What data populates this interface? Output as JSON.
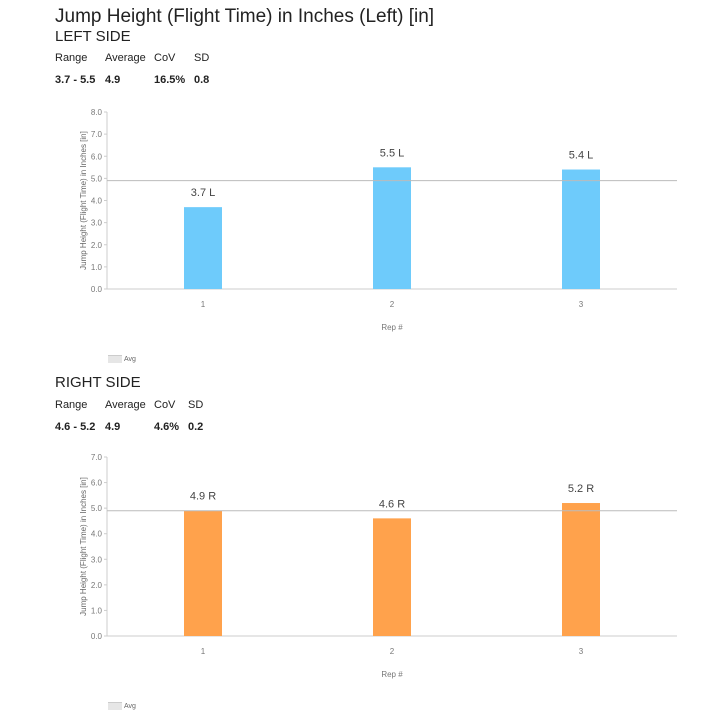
{
  "title": "Jump Height (Flight Time) in Inches (Left) [in]",
  "stat_labels": {
    "range": "Range",
    "average": "Average",
    "cov": "CoV",
    "sd": "SD"
  },
  "left": {
    "heading": "LEFT SIDE",
    "range": "3.7 - 5.5",
    "average": "4.9",
    "cov": "16.5%",
    "sd": "0.8"
  },
  "right": {
    "heading": "RIGHT SIDE",
    "range": "4.6 - 5.2",
    "average": "4.9",
    "cov": "4.6%",
    "sd": "0.2"
  },
  "chart_data": [
    {
      "type": "bar",
      "categories": [
        "1",
        "2",
        "3"
      ],
      "values": [
        3.7,
        5.5,
        5.4
      ],
      "data_labels": [
        "3.7 L",
        "5.5 L",
        "5.4 L"
      ],
      "average": 4.9,
      "ylim": [
        0,
        8
      ],
      "yticks": [
        "0.0",
        "1.0",
        "2.0",
        "3.0",
        "4.0",
        "5.0",
        "6.0",
        "7.0",
        "8.0"
      ],
      "xlabel": "Rep #",
      "ylabel": "Jump Height (Flight Time) in Inches [in]",
      "legend": [
        "Avg"
      ],
      "legend_position": "bottom-left",
      "color": "#6ecbfb"
    },
    {
      "type": "bar",
      "categories": [
        "1",
        "2",
        "3"
      ],
      "values": [
        4.9,
        4.6,
        5.2
      ],
      "data_labels": [
        "4.9 R",
        "4.6 R",
        "5.2 R"
      ],
      "average": 4.9,
      "ylim": [
        0,
        7
      ],
      "yticks": [
        "0.0",
        "1.0",
        "2.0",
        "3.0",
        "4.0",
        "5.0",
        "6.0",
        "7.0"
      ],
      "xlabel": "Rep #",
      "ylabel": "Jump Height (Flight Time) in Inches [in]",
      "legend": [
        "Avg"
      ],
      "legend_position": "bottom-left",
      "color": "#ffa24c"
    }
  ]
}
